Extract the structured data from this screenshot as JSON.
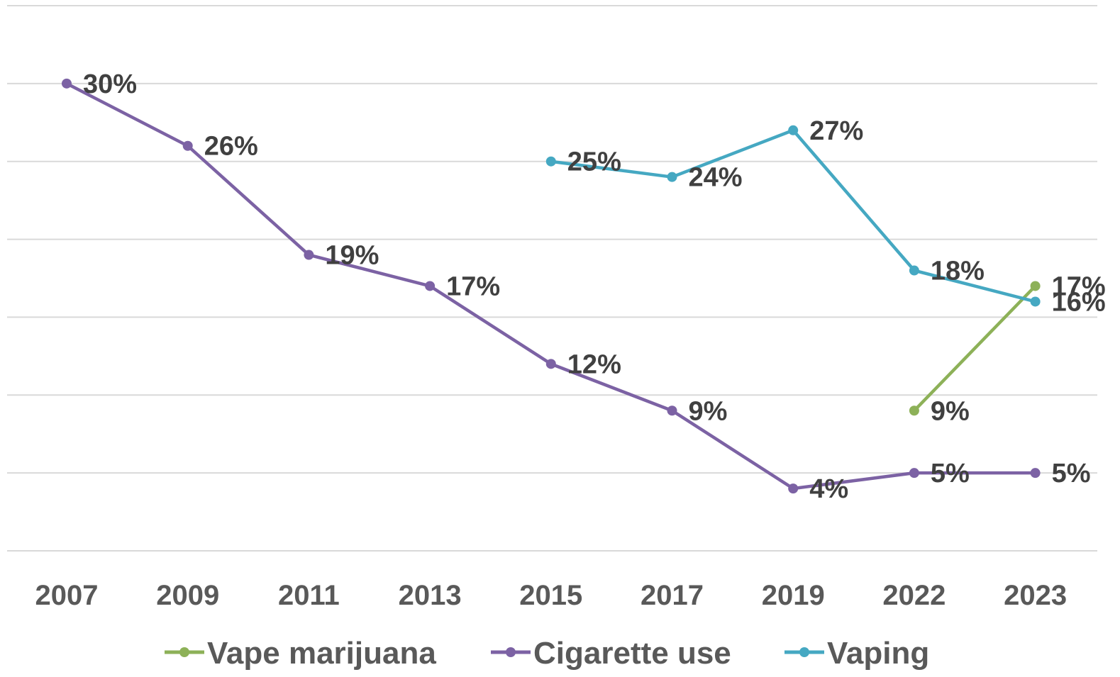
{
  "chart_data": {
    "type": "line",
    "categories": [
      "2007",
      "2009",
      "2011",
      "2013",
      "2015",
      "2017",
      "2019",
      "2022",
      "2023"
    ],
    "ylim": [
      0,
      35
    ],
    "grid": true,
    "legend_position": "bottom",
    "series": [
      {
        "name": "Vape marijuana",
        "color": "#8db158",
        "values": [
          null,
          null,
          null,
          null,
          null,
          null,
          null,
          9,
          17
        ],
        "labels": [
          null,
          null,
          null,
          null,
          null,
          null,
          null,
          "9%",
          "17%"
        ]
      },
      {
        "name": "Cigarette use",
        "color": "#7c62a4",
        "values": [
          30,
          26,
          19,
          17,
          12,
          9,
          4,
          5,
          5
        ],
        "labels": [
          "30%",
          "26%",
          "19%",
          "17%",
          "12%",
          "9%",
          "4%",
          "5%",
          "5%"
        ]
      },
      {
        "name": "Vaping",
        "color": "#45a8c2",
        "values": [
          null,
          null,
          null,
          null,
          25,
          24,
          27,
          18,
          16
        ],
        "labels": [
          null,
          null,
          null,
          null,
          "25%",
          "24%",
          "27%",
          "18%",
          "16%"
        ]
      }
    ]
  }
}
